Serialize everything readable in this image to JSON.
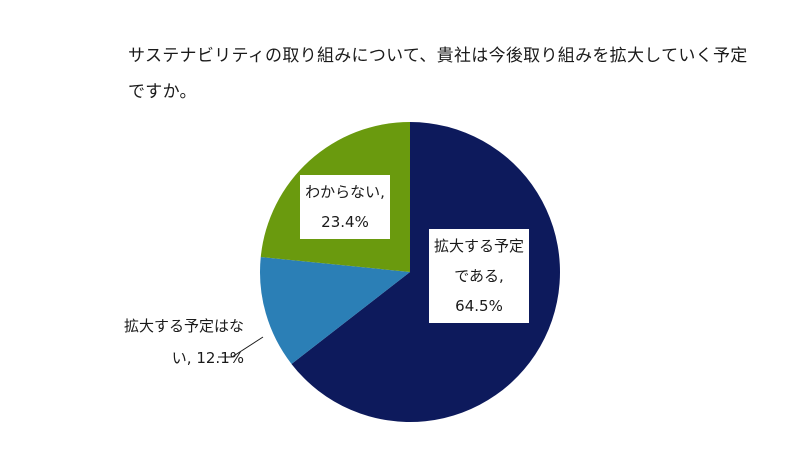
{
  "chart_data": {
    "type": "pie",
    "title": "サステナビリティの取り組みについて、貴社は今後取り組みを拡大していく予定ですか。",
    "start_angle_deg": 0,
    "direction": "clockwise",
    "slices": [
      {
        "label": "拡大する予定である",
        "value": 64.5,
        "color": "#0d1a5c",
        "display": "拡大する予定\nである,\n64.5%"
      },
      {
        "label": "拡大する予定はない",
        "value": 12.1,
        "color": "#2b7fb6",
        "display": "拡大する予定はな\nい, 12.1%"
      },
      {
        "label": "わからない",
        "value": 23.4,
        "color": "#6a9a0e",
        "display": "わからない,\n23.4%"
      }
    ],
    "legend": "none"
  }
}
